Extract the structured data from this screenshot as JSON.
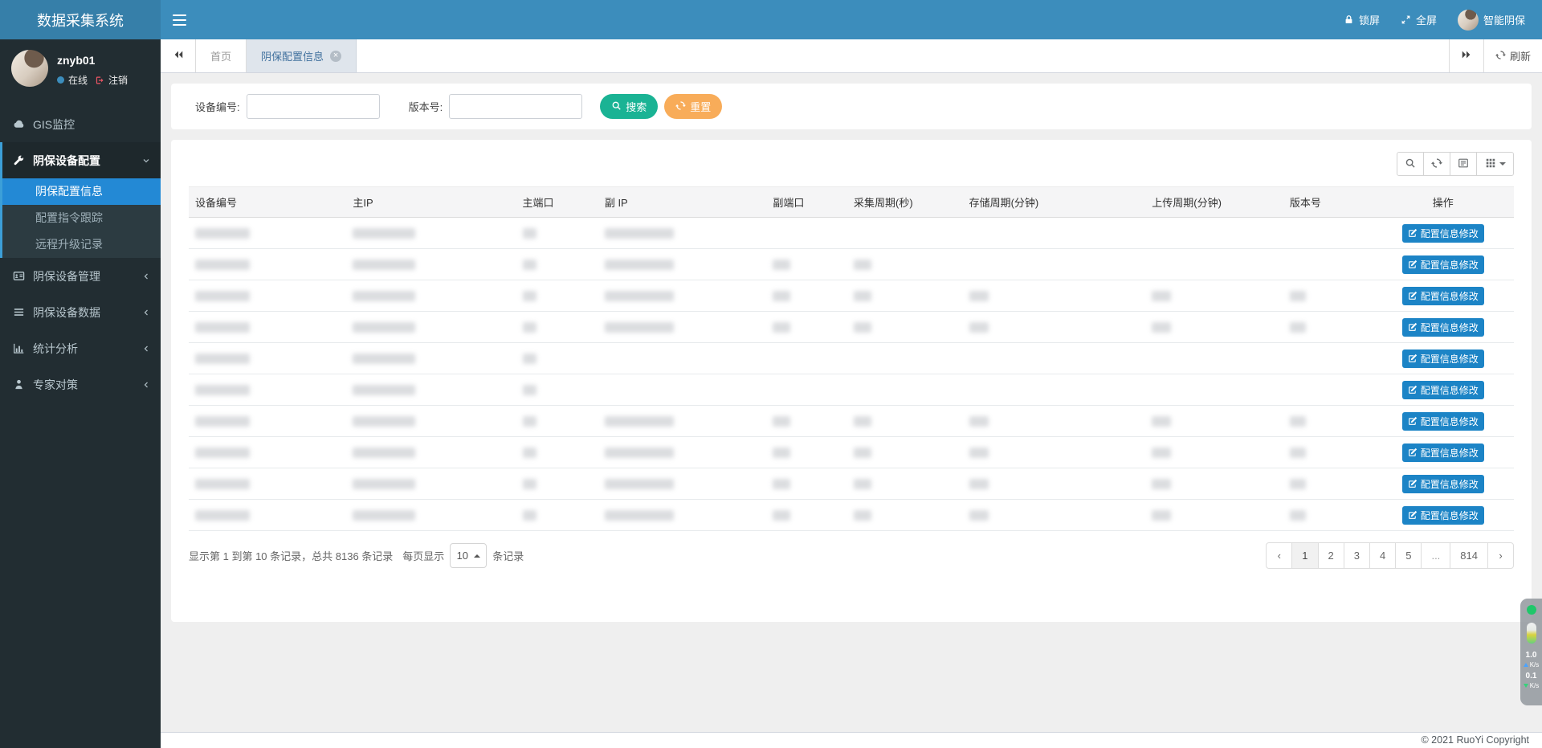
{
  "app": {
    "title": "数据采集系统"
  },
  "navbar": {
    "lock": "锁屏",
    "fullscreen": "全屏",
    "user": "智能阴保"
  },
  "sidebar": {
    "user": {
      "name": "znyb01",
      "status": "在线",
      "logout": "注销"
    },
    "menu": [
      {
        "label": "GIS监控",
        "icon": "cloud-icon"
      },
      {
        "label": "阴保设备配置",
        "icon": "tools-icon",
        "expanded": true,
        "children": [
          {
            "label": "阴保配置信息",
            "active": true
          },
          {
            "label": "配置指令跟踪"
          },
          {
            "label": "远程升级记录"
          }
        ]
      },
      {
        "label": "阴保设备管理",
        "icon": "id-card-icon"
      },
      {
        "label": "阴保设备数据",
        "icon": "list-icon"
      },
      {
        "label": "统计分析",
        "icon": "bar-chart-icon"
      },
      {
        "label": "专家对策",
        "icon": "user-icon"
      }
    ]
  },
  "tabs": {
    "home": "首页",
    "active_tab": "阴保配置信息",
    "refresh": "刷新"
  },
  "search": {
    "device_label": "设备编号:",
    "device_value": "",
    "version_label": "版本号:",
    "version_value": "",
    "search_button": "搜索",
    "reset_button": "重置"
  },
  "table": {
    "columns": [
      "设备编号",
      "主IP",
      "主端口",
      "副 IP",
      "副端口",
      "采集周期(秒)",
      "存储周期(分钟)",
      "上传周期(分钟)",
      "版本号",
      "操作"
    ],
    "action_button": "配置信息修改",
    "redacted_cell_widths": [
      68,
      78,
      17,
      86,
      22,
      22,
      24,
      24,
      20
    ],
    "rows": [
      {
        "cells": [
          1,
          1,
          1,
          1,
          0,
          0,
          0,
          0,
          0
        ]
      },
      {
        "cells": [
          1,
          1,
          1,
          1,
          1,
          1,
          0,
          0,
          0
        ]
      },
      {
        "cells": [
          1,
          1,
          1,
          1,
          1,
          1,
          1,
          1,
          1
        ]
      },
      {
        "cells": [
          1,
          1,
          1,
          1,
          1,
          1,
          1,
          1,
          1
        ]
      },
      {
        "cells": [
          1,
          1,
          1,
          0,
          0,
          0,
          0,
          0,
          0
        ]
      },
      {
        "cells": [
          1,
          1,
          1,
          0,
          0,
          0,
          0,
          0,
          0
        ]
      },
      {
        "cells": [
          1,
          1,
          1,
          1,
          1,
          1,
          1,
          1,
          1
        ]
      },
      {
        "cells": [
          1,
          1,
          1,
          1,
          1,
          1,
          1,
          1,
          1
        ]
      },
      {
        "cells": [
          1,
          1,
          1,
          1,
          1,
          1,
          1,
          1,
          1
        ]
      },
      {
        "cells": [
          1,
          1,
          1,
          1,
          1,
          1,
          1,
          1,
          1
        ]
      }
    ]
  },
  "pagination": {
    "summary": "显示第 1 到第 10 条记录，总共 8136 条记录",
    "per_page_prefix": "每页显示",
    "page_size": "10",
    "per_page_suffix": "条记录",
    "prev": "‹",
    "next": "›",
    "pages": [
      "1",
      "2",
      "3",
      "4",
      "5",
      "...",
      "814"
    ],
    "active_page": "1"
  },
  "footer": {
    "copyright": "© 2021 RuoYi Copyright"
  },
  "net_widget": {
    "up_value": "1.0",
    "up_unit": "K/s",
    "down_value": "0.1",
    "down_unit": "K/s"
  },
  "colors": {
    "navbar": "#3c8dbc",
    "logo_bg": "#367fa9",
    "sidebar": "#222d32",
    "active_menu": "#2389d5",
    "search_button": "#1ab394",
    "reset_button": "#f8ac59",
    "action_button": "#1c84c6"
  }
}
